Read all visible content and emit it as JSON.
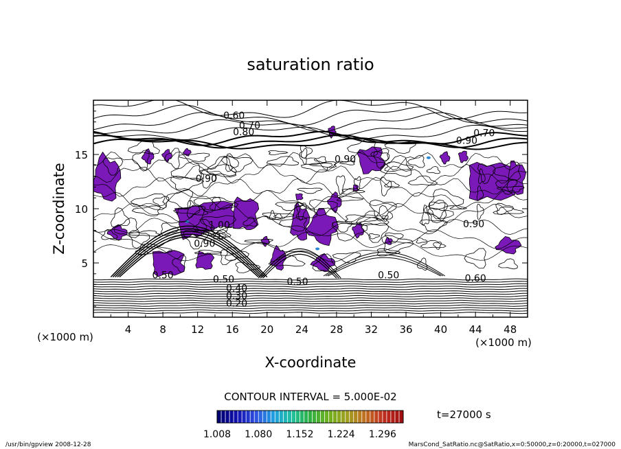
{
  "chart_data": {
    "type": "contour",
    "title": "saturation ratio",
    "xlabel": "X-coordinate",
    "ylabel": "Z-coordinate",
    "x_unit": "(×1000 m)",
    "z_unit": "(×1000 m)",
    "xlim": [
      0,
      50
    ],
    "ylim": [
      0,
      20
    ],
    "x_ticks": [
      "4",
      "8",
      "12",
      "16",
      "20",
      "24",
      "28",
      "32",
      "36",
      "40",
      "44",
      "48"
    ],
    "y_ticks": [
      "5",
      "10",
      "15"
    ],
    "contour_interval_text": "CONTOUR INTERVAL = 5.000E-02",
    "contour_labels": [
      {
        "text": "0.60",
        "x": 16.2,
        "z": 18.6
      },
      {
        "text": "0.70",
        "x": 18.0,
        "z": 17.7
      },
      {
        "text": "0.80",
        "x": 17.3,
        "z": 17.1
      },
      {
        "text": "0.70",
        "x": 45.0,
        "z": 17.0
      },
      {
        "text": "0.90",
        "x": 43.0,
        "z": 16.3
      },
      {
        "text": "0.90",
        "x": 29.0,
        "z": 14.6
      },
      {
        "text": "0.90",
        "x": 13.0,
        "z": 12.8
      },
      {
        "text": "1.00",
        "x": 14.5,
        "z": 8.5
      },
      {
        "text": "0.90",
        "x": 12.8,
        "z": 6.8
      },
      {
        "text": "0.90",
        "x": 43.8,
        "z": 8.6
      },
      {
        "text": "0.50",
        "x": 8.0,
        "z": 3.9
      },
      {
        "text": "0.50",
        "x": 15.0,
        "z": 3.5
      },
      {
        "text": "0.40",
        "x": 16.5,
        "z": 2.7
      },
      {
        "text": "0.30",
        "x": 16.5,
        "z": 2.0
      },
      {
        "text": "0.20",
        "x": 16.5,
        "z": 1.3
      },
      {
        "text": "0.50",
        "x": 23.5,
        "z": 3.3
      },
      {
        "text": "0.50",
        "x": 34.0,
        "z": 3.9
      },
      {
        "text": "0.60",
        "x": 44.0,
        "z": 3.6
      }
    ],
    "colorbar": {
      "labels": [
        "1.008",
        "1.080",
        "1.152",
        "1.224",
        "1.296"
      ],
      "min": 1.008,
      "max": 1.332,
      "colors": [
        "#000070",
        "#1010b0",
        "#3050e0",
        "#20a0e0",
        "#20c0a0",
        "#30b040",
        "#70b020",
        "#a0a020",
        "#c07020",
        "#c03020",
        "#a01010"
      ]
    },
    "fill_color": "#7a19b8",
    "time_label": "t=27000 s",
    "footer_left": "/usr/bin/gpview  2008-12-28",
    "footer_right": "MarsCond_SatRatio.nc@SatRatio,x=0:50000,z=0:20000,t=027000"
  }
}
